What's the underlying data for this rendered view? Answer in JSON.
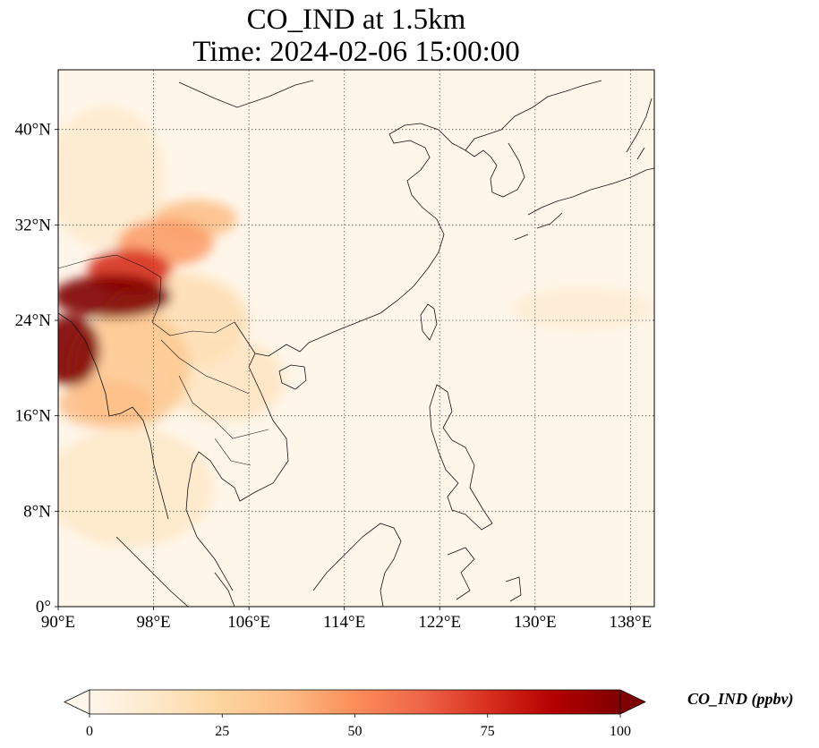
{
  "title": {
    "line1": "CO_IND at 1.5km",
    "line2": "Time: 2024-02-06 15:00:00"
  },
  "map": {
    "lon_range": [
      90,
      140
    ],
    "lat_range": [
      0,
      45
    ],
    "lon_ticks": [
      {
        "value": 90,
        "label": "90°E"
      },
      {
        "value": 98,
        "label": "98°E"
      },
      {
        "value": 106,
        "label": "106°E"
      },
      {
        "value": 114,
        "label": "114°E"
      },
      {
        "value": 122,
        "label": "122°E"
      },
      {
        "value": 130,
        "label": "130°E"
      },
      {
        "value": 138,
        "label": "138°E"
      }
    ],
    "lat_ticks": [
      {
        "value": 0,
        "label": "0°"
      },
      {
        "value": 8,
        "label": "8°N"
      },
      {
        "value": 16,
        "label": "16°N"
      },
      {
        "value": 24,
        "label": "24°N"
      },
      {
        "value": 32,
        "label": "32°N"
      },
      {
        "value": 40,
        "label": "40°N"
      }
    ],
    "gridlines": true,
    "colormap": "OrRd",
    "plumes": [
      {
        "lon": 94.5,
        "lat": 26.0,
        "rx": 5.0,
        "ry": 1.8,
        "value": 100
      },
      {
        "lon": 91.0,
        "lat": 21.5,
        "rx": 2.5,
        "ry": 3.0,
        "value": 100
      },
      {
        "lon": 96.0,
        "lat": 28.2,
        "rx": 3.5,
        "ry": 1.8,
        "value": 75
      },
      {
        "lon": 99.0,
        "lat": 30.5,
        "rx": 4.0,
        "ry": 2.0,
        "value": 45
      },
      {
        "lon": 101.5,
        "lat": 32.5,
        "rx": 3.5,
        "ry": 1.6,
        "value": 35
      },
      {
        "lon": 96.0,
        "lat": 20.0,
        "rx": 5.0,
        "ry": 5.0,
        "value": 30
      },
      {
        "lon": 94.0,
        "lat": 17.0,
        "rx": 4.0,
        "ry": 2.0,
        "value": 35
      },
      {
        "lon": 100.0,
        "lat": 24.0,
        "rx": 6.0,
        "ry": 4.0,
        "value": 18
      },
      {
        "lon": 104.0,
        "lat": 19.0,
        "rx": 5.0,
        "ry": 3.5,
        "value": 14
      },
      {
        "lon": 96.0,
        "lat": 10.0,
        "rx": 7.0,
        "ry": 5.0,
        "value": 12
      },
      {
        "lon": 94.0,
        "lat": 36.0,
        "rx": 5.0,
        "ry": 6.0,
        "value": 10
      },
      {
        "lon": 134.0,
        "lat": 25.0,
        "rx": 6.0,
        "ry": 1.8,
        "value": 8
      }
    ]
  },
  "colorbar": {
    "min": 0,
    "max": 100,
    "extend": "both",
    "ticks": [
      {
        "value": 0,
        "label": "0"
      },
      {
        "value": 25,
        "label": "25"
      },
      {
        "value": 50,
        "label": "50"
      },
      {
        "value": 75,
        "label": "75"
      },
      {
        "value": 100,
        "label": "100"
      }
    ],
    "label": "CO_IND (ppbv)",
    "colors": [
      "#fff7ec",
      "#fee8c8",
      "#fdd49e",
      "#fdbb84",
      "#fc8d59",
      "#ef6548",
      "#d7301f",
      "#b30000",
      "#7f0000"
    ]
  }
}
